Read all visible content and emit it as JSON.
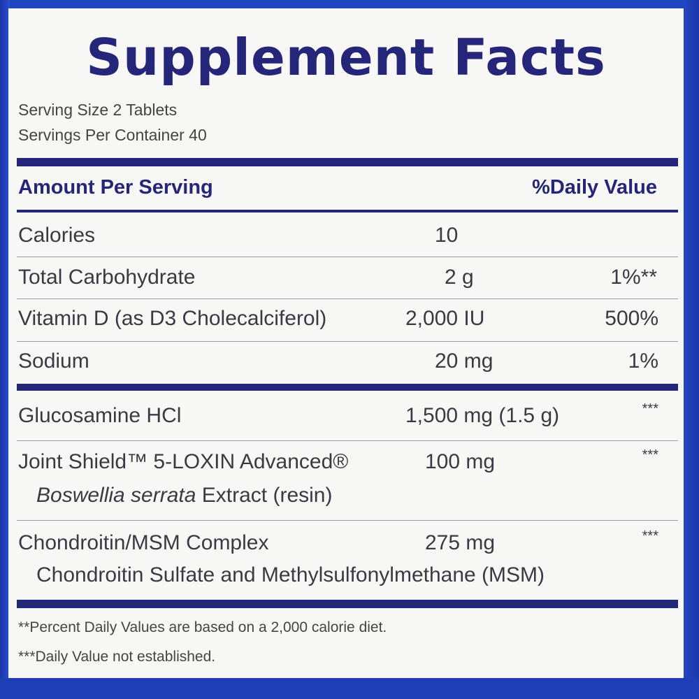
{
  "title": "Supplement Facts",
  "serving_size": "Serving Size 2 Tablets",
  "servings_per_container": "Servings Per Container 40",
  "header": {
    "amount_per_serving": "Amount Per Serving",
    "daily_value": "%Daily Value"
  },
  "rows": [
    {
      "name": "Calories",
      "amount": "10",
      "dv": ""
    },
    {
      "name": "Total Carbohydrate",
      "amount": "2 g",
      "dv": "1%**"
    },
    {
      "name": "Vitamin D (as D3 Cholecalciferol)",
      "amount": "2,000 IU",
      "dv": "500%"
    },
    {
      "name": "Sodium",
      "amount": "20 mg",
      "dv": "1%"
    },
    {
      "name": "Glucosamine HCl",
      "amount": "1,500 mg (1.5 g)",
      "dv": "***"
    },
    {
      "name": "Joint Shield™ 5-LOXIN Advanced®",
      "sub_italic": "Boswellia serrata",
      "sub_rest": " Extract (resin)",
      "amount": "100 mg",
      "dv": "***"
    },
    {
      "name": "Chondroitin/MSM Complex",
      "sub": "Chondroitin Sulfate and Methylsulfonylmethane (MSM)",
      "amount": "275 mg",
      "dv": "***"
    }
  ],
  "footnotes": [
    "**Percent Daily Values are based on a 2,000 calorie diet.",
    "***Daily Value not established."
  ],
  "colors": {
    "label_ink": "#25257a",
    "box_blue": "#1e3fb8",
    "panel": "#f7f7f5"
  }
}
